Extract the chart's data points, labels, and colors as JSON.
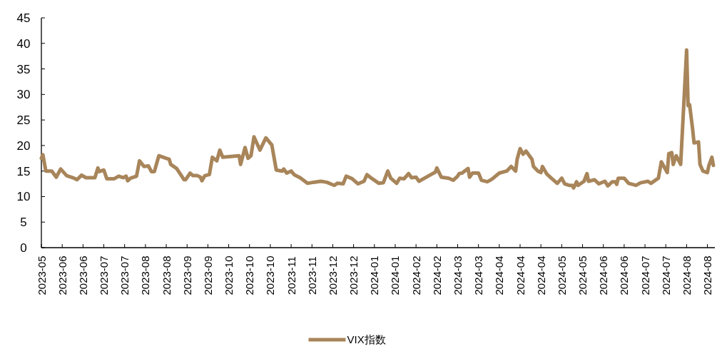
{
  "chart_data": {
    "type": "line",
    "x": [
      "2023-05-26",
      "2023-05-27",
      "2023-05-29",
      "2023-06-02",
      "2023-06-05",
      "2023-06-08",
      "2023-06-12",
      "2023-06-17",
      "2023-06-19",
      "2023-06-22",
      "2023-06-25",
      "2023-07-01",
      "2023-07-03",
      "2023-07-04",
      "2023-07-07",
      "2023-07-09",
      "2023-07-14",
      "2023-07-17",
      "2023-07-20",
      "2023-07-22",
      "2023-07-23",
      "2023-07-25",
      "2023-07-29",
      "2023-07-31",
      "2023-08-03",
      "2023-08-06",
      "2023-08-08",
      "2023-08-10",
      "2023-08-13",
      "2023-08-18",
      "2023-08-20",
      "2023-08-21",
      "2023-08-25",
      "2023-08-30",
      "2023-08-31",
      "2023-09-03",
      "2023-09-05",
      "2023-09-08",
      "2023-09-10",
      "2023-09-11",
      "2023-09-13",
      "2023-09-16",
      "2023-09-18",
      "2023-09-21",
      "2023-09-23",
      "2023-09-25",
      "2023-10-06",
      "2023-10-07",
      "2023-10-10",
      "2023-10-12",
      "2023-10-14",
      "2023-10-16",
      "2023-10-20",
      "2023-10-24",
      "2023-10-28",
      "2023-10-31",
      "2023-11-04",
      "2023-11-05",
      "2023-11-07",
      "2023-11-10",
      "2023-11-12",
      "2023-11-16",
      "2023-11-21",
      "2023-11-25",
      "2023-11-30",
      "2023-12-04",
      "2023-12-09",
      "2023-12-11",
      "2023-12-15",
      "2023-12-17",
      "2023-12-21",
      "2023-12-25",
      "2023-12-29",
      "2023-12-31",
      "2024-01-03",
      "2024-01-08",
      "2024-01-11",
      "2024-01-14",
      "2024-01-16",
      "2024-01-20",
      "2024-01-22",
      "2024-01-25",
      "2024-01-28",
      "2024-01-30",
      "2024-02-02",
      "2024-02-04",
      "2024-02-15",
      "2024-02-16",
      "2024-02-19",
      "2024-02-24",
      "2024-02-27",
      "2024-03-01",
      "2024-03-02",
      "2024-03-04",
      "2024-03-08",
      "2024-03-09",
      "2024-03-11",
      "2024-03-15",
      "2024-03-17",
      "2024-03-21",
      "2024-03-24",
      "2024-03-29",
      "2024-04-03",
      "2024-04-06",
      "2024-04-09",
      "2024-04-10",
      "2024-04-12",
      "2024-04-14",
      "2024-04-16",
      "2024-04-20",
      "2024-04-21",
      "2024-04-24",
      "2024-04-26",
      "2024-04-27",
      "2024-04-30",
      "2024-05-03",
      "2024-05-07",
      "2024-05-10",
      "2024-05-12",
      "2024-05-15",
      "2024-05-17",
      "2024-05-18",
      "2024-05-20",
      "2024-05-21",
      "2024-05-25",
      "2024-05-27",
      "2024-05-28",
      "2024-06-01",
      "2024-06-04",
      "2024-06-08",
      "2024-06-10",
      "2024-06-13",
      "2024-06-15",
      "2024-06-16",
      "2024-06-17",
      "2024-06-21",
      "2024-06-24",
      "2024-06-29",
      "2024-07-02",
      "2024-07-07",
      "2024-07-09",
      "2024-07-14",
      "2024-07-16",
      "2024-07-20",
      "2024-07-21",
      "2024-07-23",
      "2024-07-24",
      "2024-07-26",
      "2024-07-29",
      "2024-08-02",
      "2024-08-03",
      "2024-08-04",
      "2024-08-06",
      "2024-08-07",
      "2024-08-10",
      "2024-08-11",
      "2024-08-13",
      "2024-08-16",
      "2024-08-17",
      "2024-08-19",
      "2024-08-20"
    ],
    "series": [
      {
        "name": "VIX指数",
        "color": "#a8855a",
        "values": [
          17.5,
          18.2,
          15.0,
          15.0,
          13.8,
          15.4,
          14.1,
          13.6,
          13.3,
          14.2,
          13.7,
          13.7,
          15.6,
          14.9,
          15.2,
          13.5,
          13.5,
          14.0,
          13.7,
          14.0,
          13.1,
          13.6,
          14.0,
          17.0,
          15.9,
          16.0,
          14.9,
          14.9,
          18.0,
          17.5,
          17.3,
          16.3,
          15.5,
          13.3,
          13.3,
          14.6,
          14.1,
          14.1,
          13.8,
          13.1,
          14.1,
          14.3,
          17.7,
          17.0,
          19.1,
          17.7,
          18.0,
          16.3,
          19.6,
          17.5,
          18.0,
          21.7,
          19.1,
          21.5,
          20.1,
          15.2,
          15.0,
          15.4,
          14.6,
          15.0,
          14.3,
          13.7,
          12.6,
          12.8,
          13.0,
          12.8,
          12.2,
          12.6,
          12.5,
          14.0,
          13.5,
          12.5,
          13.0,
          14.3,
          13.6,
          12.6,
          12.7,
          15.0,
          13.6,
          12.6,
          13.6,
          13.5,
          14.5,
          13.7,
          13.8,
          13.0,
          14.8,
          15.6,
          13.8,
          13.6,
          13.2,
          14.0,
          14.5,
          14.6,
          15.5,
          13.8,
          14.6,
          14.6,
          13.2,
          12.9,
          13.4,
          14.6,
          15.0,
          15.9,
          15.0,
          17.3,
          19.4,
          18.3,
          18.9,
          17.3,
          15.9,
          15.0,
          14.7,
          15.9,
          14.4,
          13.6,
          12.6,
          13.6,
          12.5,
          12.2,
          12.2,
          11.7,
          12.9,
          12.2,
          13.0,
          14.5,
          13.0,
          13.3,
          12.5,
          13.0,
          12.1,
          12.9,
          12.9,
          12.4,
          13.6,
          13.6,
          12.6,
          12.2,
          12.7,
          13.0,
          12.6,
          13.6,
          16.8,
          14.7,
          18.4,
          18.6,
          16.3,
          18.0,
          16.3,
          38.7,
          27.8,
          28.0,
          23.3,
          20.5,
          20.7,
          16.3,
          15.0,
          14.7,
          16.1,
          17.7,
          16.1
        ]
      }
    ],
    "xlim": [
      "2023-05-26",
      "2024-08-21"
    ],
    "xticks": [
      {
        "value": "2023-05-26",
        "label": "2023-05"
      },
      {
        "value": "2023-06-09",
        "label": "2023-06"
      },
      {
        "value": "2023-06-23",
        "label": "2023-06"
      },
      {
        "value": "2023-07-07",
        "label": "2023-07"
      },
      {
        "value": "2023-07-21",
        "label": "2023-07"
      },
      {
        "value": "2023-08-04",
        "label": "2023-08"
      },
      {
        "value": "2023-08-18",
        "label": "2023-08"
      },
      {
        "value": "2023-09-01",
        "label": "2023-09"
      },
      {
        "value": "2023-09-15",
        "label": "2023-09"
      },
      {
        "value": "2023-09-29",
        "label": "2023-10"
      },
      {
        "value": "2023-10-13",
        "label": "2023-10"
      },
      {
        "value": "2023-10-27",
        "label": "2023-10"
      },
      {
        "value": "2023-11-10",
        "label": "2023-11"
      },
      {
        "value": "2023-11-24",
        "label": "2023-11"
      },
      {
        "value": "2023-12-08",
        "label": "2023-12"
      },
      {
        "value": "2023-12-22",
        "label": "2023-12"
      },
      {
        "value": "2024-01-05",
        "label": "2024-01"
      },
      {
        "value": "2024-01-19",
        "label": "2024-01"
      },
      {
        "value": "2024-02-02",
        "label": "2024-02"
      },
      {
        "value": "2024-02-16",
        "label": "2024-02"
      },
      {
        "value": "2024-03-01",
        "label": "2024-03"
      },
      {
        "value": "2024-03-15",
        "label": "2024-03"
      },
      {
        "value": "2024-03-29",
        "label": "2024-04"
      },
      {
        "value": "2024-04-12",
        "label": "2024-04"
      },
      {
        "value": "2024-04-26",
        "label": "2024-04"
      },
      {
        "value": "2024-05-10",
        "label": "2024-05"
      },
      {
        "value": "2024-05-24",
        "label": "2024-05"
      },
      {
        "value": "2024-06-07",
        "label": "2024-06"
      },
      {
        "value": "2024-06-21",
        "label": "2024-06"
      },
      {
        "value": "2024-07-05",
        "label": "2024-07"
      },
      {
        "value": "2024-07-19",
        "label": "2024-07"
      },
      {
        "value": "2024-08-02",
        "label": "2024-08"
      },
      {
        "value": "2024-08-16",
        "label": "2024-08"
      }
    ],
    "ylim": [
      0,
      45
    ],
    "yticks": [
      0,
      5,
      10,
      15,
      20,
      25,
      30,
      35,
      40,
      45
    ],
    "legend": "bottom",
    "grid": false,
    "marker": "none",
    "line_style": "solid"
  }
}
